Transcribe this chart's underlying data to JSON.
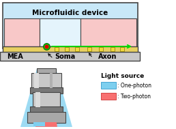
{
  "title": "Microfluidic device",
  "label_mea": "MEA",
  "label_soma": "Soma",
  "label_axon": "Axon",
  "legend_title": "Light source",
  "legend_one_photon": ": One-photon",
  "legend_two_photon": ": Two-photon",
  "color_cyan_light": "#7DCFEF",
  "color_red_light": "#F87070",
  "color_mea_bg": "#C8C8C8",
  "color_microfluidic_bg": "#C8E8F8",
  "color_pink_chamber": "#F8C8C8",
  "color_yellow_bar": "#E8D060",
  "color_green": "#00DD00",
  "color_red_dot": "#DD0000",
  "color_gray_dark": "#787878",
  "color_gray_mid": "#A8A8A8",
  "color_gray_light": "#C8C8C8",
  "color_border": "#444444",
  "color_white": "#FFFFFF",
  "background": "#FFFFFF"
}
